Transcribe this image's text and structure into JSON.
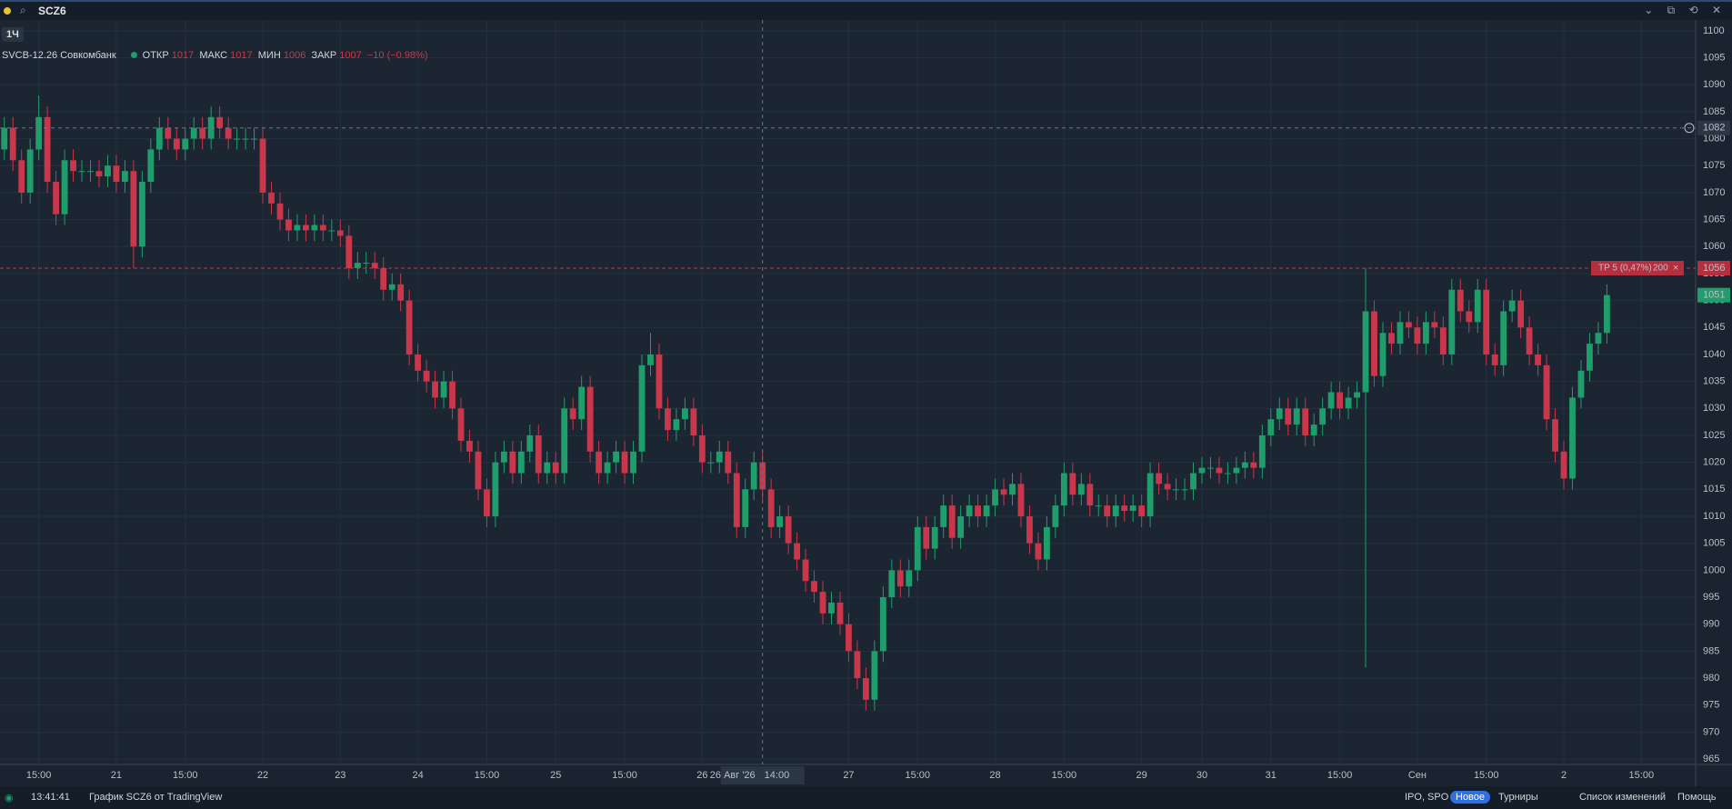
{
  "header": {
    "symbol": "SCZ6"
  },
  "interval": "1Ч",
  "legend": {
    "name": "SVCB-12.26 Совкомбанк",
    "open_label": "ОТКР",
    "open": 1017,
    "high_label": "МАКС",
    "high": 1017,
    "low_label": "МИН",
    "low": 1006,
    "close_label": "ЗАКР",
    "close": 1007,
    "change": "−10 (−0.98%)"
  },
  "chart_data": {
    "type": "candlestick",
    "up_color": "#1f9e6c",
    "down_color": "#c8374a",
    "open": [
      1078,
      1082,
      1076,
      1070,
      1078,
      1084,
      1072,
      1066,
      1076,
      1074,
      1074,
      1074,
      1073,
      1075,
      1072,
      1074,
      1060,
      1072,
      1078,
      1082,
      1080,
      1078,
      1080,
      1082,
      1080,
      1084,
      1082,
      1080,
      1080,
      1080,
      1080,
      1070,
      1068,
      1065,
      1063,
      1064,
      1063,
      1064,
      1063,
      1063,
      1062,
      1056,
      1057,
      1057,
      1056,
      1052,
      1053,
      1050,
      1040,
      1037,
      1035,
      1032,
      1035,
      1030,
      1024,
      1022,
      1015,
      1010,
      1020,
      1022,
      1018,
      1022,
      1025,
      1018,
      1020,
      1018,
      1030,
      1028,
      1034,
      1022,
      1018,
      1020,
      1022,
      1018,
      1022,
      1038,
      1040,
      1030,
      1026,
      1028,
      1030,
      1025,
      1020,
      1020,
      1022,
      1018,
      1008,
      1015,
      1020,
      1015,
      1008,
      1010,
      1005,
      1002,
      998,
      996,
      992,
      994,
      990,
      985,
      980,
      976,
      985,
      995,
      1000,
      997,
      1000,
      1008,
      1004,
      1008,
      1012,
      1006,
      1010,
      1012,
      1010,
      1012,
      1015,
      1014,
      1016,
      1010,
      1005,
      1002,
      1008,
      1012,
      1018,
      1014,
      1016,
      1012,
      1012,
      1010,
      1012,
      1011,
      1012,
      1010,
      1018,
      1016,
      1015,
      1015,
      1015,
      1018,
      1019,
      1019,
      1018,
      1018,
      1019,
      1020,
      1019,
      1025,
      1028,
      1030,
      1027,
      1030,
      1025,
      1027,
      1030,
      1033,
      1030,
      1032,
      1033,
      1048,
      1036,
      1044,
      1042,
      1046,
      1045,
      1042,
      1046,
      1045,
      1040,
      1052,
      1048,
      1046,
      1052,
      1040,
      1038,
      1048,
      1050,
      1045,
      1040,
      1038,
      1028,
      1022,
      1017,
      1032,
      1037,
      1042,
      1044
    ],
    "high": [
      1084,
      1084,
      1078,
      1080,
      1088,
      1086,
      1074,
      1078,
      1078,
      1076,
      1076,
      1076,
      1077,
      1077,
      1076,
      1076,
      1074,
      1080,
      1084,
      1084,
      1082,
      1082,
      1084,
      1084,
      1086,
      1086,
      1084,
      1082,
      1082,
      1082,
      1082,
      1072,
      1070,
      1067,
      1066,
      1066,
      1066,
      1066,
      1065,
      1065,
      1064,
      1059,
      1059,
      1059,
      1058,
      1055,
      1055,
      1052,
      1042,
      1039,
      1037,
      1037,
      1037,
      1032,
      1026,
      1024,
      1017,
      1022,
      1024,
      1024,
      1024,
      1027,
      1027,
      1022,
      1022,
      1032,
      1032,
      1036,
      1036,
      1024,
      1022,
      1024,
      1024,
      1024,
      1040,
      1044,
      1042,
      1032,
      1030,
      1032,
      1032,
      1027,
      1022,
      1024,
      1024,
      1020,
      1017,
      1022,
      1022,
      1017,
      1012,
      1012,
      1007,
      1004,
      1000,
      998,
      996,
      996,
      992,
      987,
      982,
      987,
      997,
      1002,
      1002,
      1002,
      1010,
      1010,
      1010,
      1014,
      1014,
      1012,
      1014,
      1014,
      1014,
      1017,
      1017,
      1018,
      1018,
      1012,
      1007,
      1010,
      1014,
      1020,
      1020,
      1018,
      1018,
      1014,
      1014,
      1014,
      1014,
      1014,
      1014,
      1020,
      1020,
      1018,
      1017,
      1017,
      1020,
      1021,
      1021,
      1021,
      1020,
      1021,
      1022,
      1022,
      1027,
      1030,
      1032,
      1032,
      1032,
      1032,
      1029,
      1032,
      1035,
      1035,
      1034,
      1035,
      1056,
      1050,
      1046,
      1046,
      1048,
      1048,
      1047,
      1048,
      1048,
      1047,
      1054,
      1054,
      1050,
      1054,
      1054,
      1042,
      1050,
      1052,
      1052,
      1047,
      1042,
      1040,
      1030,
      1024,
      1034,
      1039,
      1044,
      1046,
      1053
    ],
    "low": [
      1076,
      1074,
      1068,
      1068,
      1076,
      1070,
      1064,
      1064,
      1072,
      1072,
      1072,
      1071,
      1071,
      1070,
      1070,
      1056,
      1058,
      1070,
      1076,
      1078,
      1076,
      1076,
      1078,
      1078,
      1078,
      1080,
      1078,
      1078,
      1078,
      1078,
      1068,
      1066,
      1063,
      1061,
      1061,
      1061,
      1061,
      1061,
      1061,
      1060,
      1054,
      1054,
      1055,
      1054,
      1050,
      1050,
      1048,
      1038,
      1035,
      1033,
      1030,
      1030,
      1028,
      1022,
      1020,
      1013,
      1008,
      1008,
      1018,
      1016,
      1016,
      1020,
      1016,
      1016,
      1016,
      1016,
      1026,
      1026,
      1020,
      1016,
      1016,
      1018,
      1016,
      1016,
      1020,
      1036,
      1028,
      1024,
      1024,
      1026,
      1023,
      1018,
      1018,
      1018,
      1016,
      1006,
      1006,
      1013,
      1013,
      1006,
      1006,
      1003,
      1000,
      996,
      994,
      990,
      990,
      988,
      983,
      978,
      974,
      974,
      983,
      993,
      995,
      995,
      998,
      1002,
      1002,
      1006,
      1004,
      1004,
      1008,
      1008,
      1008,
      1010,
      1012,
      1012,
      1008,
      1003,
      1000,
      1000,
      1006,
      1010,
      1012,
      1012,
      1010,
      1010,
      1008,
      1008,
      1009,
      1009,
      1008,
      1008,
      1014,
      1013,
      1013,
      1013,
      1013,
      1016,
      1017,
      1016,
      1016,
      1016,
      1017,
      1017,
      1017,
      1023,
      1026,
      1025,
      1025,
      1023,
      1023,
      1025,
      1028,
      1028,
      1028,
      1030,
      982,
      1034,
      1034,
      1040,
      1040,
      1043,
      1040,
      1040,
      1043,
      1038,
      1038,
      1046,
      1044,
      1044,
      1038,
      1036,
      1036,
      1046,
      1043,
      1038,
      1036,
      1026,
      1020,
      1015,
      1015,
      1030,
      1035,
      1040,
      1042
    ],
    "close": [
      1082,
      1076,
      1070,
      1078,
      1084,
      1072,
      1066,
      1076,
      1074,
      1074,
      1074,
      1073,
      1075,
      1072,
      1074,
      1060,
      1072,
      1078,
      1082,
      1080,
      1078,
      1080,
      1082,
      1080,
      1084,
      1082,
      1080,
      1080,
      1080,
      1080,
      1070,
      1068,
      1065,
      1063,
      1064,
      1063,
      1064,
      1063,
      1063,
      1062,
      1056,
      1057,
      1057,
      1056,
      1052,
      1053,
      1050,
      1040,
      1037,
      1035,
      1032,
      1035,
      1030,
      1024,
      1022,
      1015,
      1010,
      1020,
      1022,
      1018,
      1022,
      1025,
      1018,
      1020,
      1018,
      1030,
      1028,
      1034,
      1022,
      1018,
      1020,
      1022,
      1018,
      1022,
      1038,
      1040,
      1030,
      1026,
      1028,
      1030,
      1025,
      1020,
      1020,
      1022,
      1018,
      1008,
      1015,
      1020,
      1015,
      1008,
      1010,
      1005,
      1002,
      998,
      996,
      992,
      994,
      990,
      985,
      980,
      976,
      985,
      995,
      1000,
      997,
      1000,
      1008,
      1004,
      1008,
      1012,
      1006,
      1010,
      1012,
      1010,
      1012,
      1015,
      1014,
      1016,
      1010,
      1005,
      1002,
      1008,
      1012,
      1018,
      1014,
      1016,
      1012,
      1012,
      1010,
      1012,
      1011,
      1012,
      1010,
      1018,
      1016,
      1015,
      1015,
      1015,
      1018,
      1019,
      1019,
      1018,
      1018,
      1019,
      1020,
      1019,
      1025,
      1028,
      1030,
      1027,
      1030,
      1025,
      1027,
      1030,
      1033,
      1030,
      1032,
      1033,
      1048,
      1036,
      1044,
      1042,
      1046,
      1045,
      1042,
      1046,
      1045,
      1040,
      1052,
      1048,
      1046,
      1052,
      1040,
      1038,
      1048,
      1050,
      1045,
      1040,
      1038,
      1028,
      1022,
      1017,
      1032,
      1037,
      1042,
      1044,
      1051
    ],
    "xlim": [
      -0.5,
      196.3
    ],
    "ylim": [
      964,
      1102
    ],
    "xticks": [
      {
        "value": 4,
        "label": "15:00"
      },
      {
        "value": 13,
        "label": "21"
      },
      {
        "value": 21,
        "label": "15:00"
      },
      {
        "value": 30,
        "label": "22"
      },
      {
        "value": 39,
        "label": "23"
      },
      {
        "value": 48,
        "label": "24"
      },
      {
        "value": 56,
        "label": "15:00"
      },
      {
        "value": 64,
        "label": "25"
      },
      {
        "value": 72,
        "label": "15:00"
      },
      {
        "value": 81,
        "label": "26"
      },
      {
        "value": 98,
        "label": "27"
      },
      {
        "value": 106,
        "label": "15:00"
      },
      {
        "value": 115,
        "label": "28"
      },
      {
        "value": 123,
        "label": "15:00"
      },
      {
        "value": 132,
        "label": "29"
      },
      {
        "value": 139,
        "label": "30"
      },
      {
        "value": 147,
        "label": "31"
      },
      {
        "value": 155,
        "label": "15:00"
      },
      {
        "value": 164,
        "label": "Сен"
      },
      {
        "value": 172,
        "label": "15:00"
      },
      {
        "value": 181,
        "label": "2"
      },
      {
        "value": 190,
        "label": "15:00"
      }
    ],
    "yticks": [
      965,
      970,
      975,
      980,
      985,
      990,
      995,
      1000,
      1005,
      1010,
      1015,
      1020,
      1025,
      1030,
      1035,
      1040,
      1045,
      1050,
      1055,
      1060,
      1065,
      1070,
      1075,
      1080,
      1085,
      1090,
      1095,
      1100
    ],
    "grid": true,
    "crosshair": {
      "x": 88,
      "x_label": "26 Авг '26",
      "x_time": "14:00",
      "y": 1082
    },
    "order_line": {
      "value": 1056,
      "label": "TP 5 (0,47%)",
      "qty": 200
    },
    "last_price": 1051
  },
  "status_bar": {
    "time": "13:41:41",
    "chart_credit": "График SCZ6 от TradingView",
    "ipo": "IPO, SPO",
    "badge": "Новое",
    "tournaments": "Турниры",
    "changelog": "Список изменений",
    "help": "Помощь"
  }
}
